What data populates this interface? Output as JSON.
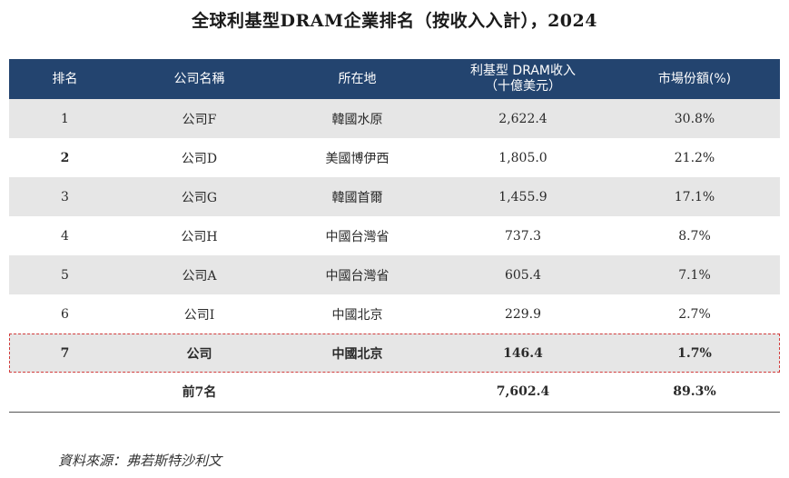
{
  "title": "全球利基型DRAM企業排名（按收入入計），2024",
  "table": {
    "headers": [
      "排名",
      "公司名稱",
      "所在地",
      "利基型 DRAM收入\n（十億美元）",
      "市場份額(%)"
    ],
    "header_rank": "排名",
    "header_company": "公司名稱",
    "header_location": "所在地",
    "header_revenue_line1": "利基型 DRAM收入",
    "header_revenue_line2": "（十億美元）",
    "header_share": "市場份額(%)",
    "rows": [
      {
        "rank": "1",
        "company": "公司F",
        "location": "韓國水原",
        "revenue": "2,622.4",
        "share": "30.8%"
      },
      {
        "rank": "2",
        "company": "公司D",
        "location": "美國博伊西",
        "revenue": "1,805.0",
        "share": "21.2%"
      },
      {
        "rank": "3",
        "company": "公司G",
        "location": "韓國首爾",
        "revenue": "1,455.9",
        "share": "17.1%"
      },
      {
        "rank": "4",
        "company": "公司H",
        "location": "中國台灣省",
        "revenue": "737.3",
        "share": "8.7%"
      },
      {
        "rank": "5",
        "company": "公司A",
        "location": "中國台灣省",
        "revenue": "605.4",
        "share": "7.1%"
      },
      {
        "rank": "6",
        "company": "公司I",
        "location": "中國北京",
        "revenue": "229.9",
        "share": "2.7%"
      },
      {
        "rank": "7",
        "company": "公司",
        "location": "中國北京",
        "revenue": "146.4",
        "share": "1.7%"
      }
    ],
    "total": {
      "label": "前7名",
      "revenue": "7,602.4",
      "share": "89.3%"
    }
  },
  "source": "資料來源：弗若斯特沙利文"
}
